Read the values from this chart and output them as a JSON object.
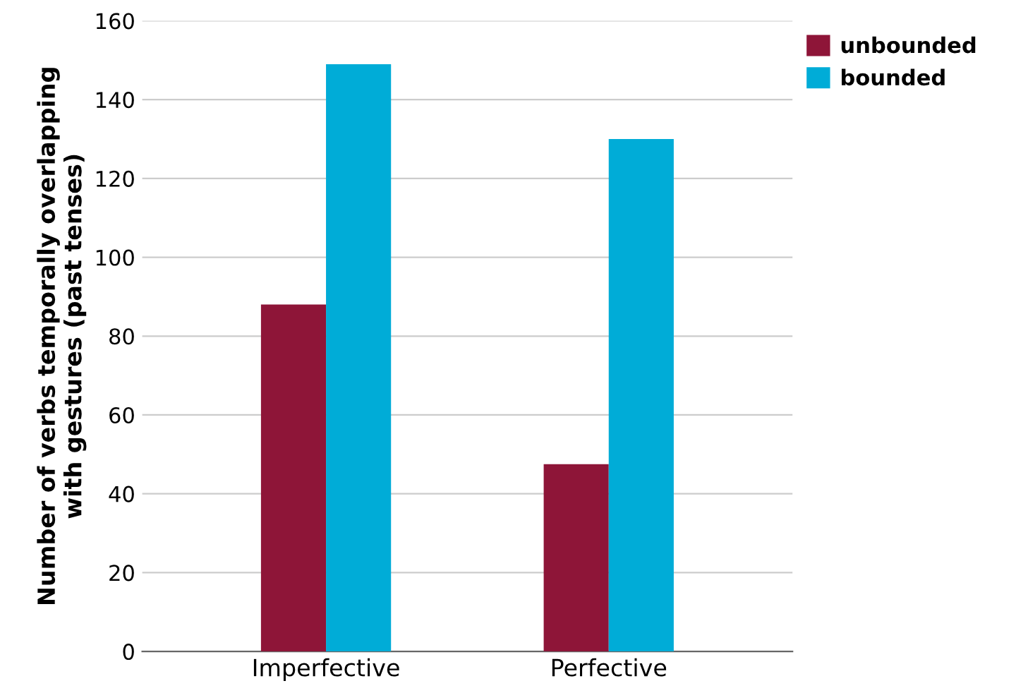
{
  "chart_data": {
    "type": "bar",
    "ylabel": "Number of verbs temporally overlapping\nwith gestures (past tenses)",
    "categories": [
      "Imperfective",
      "Perfective"
    ],
    "series": [
      {
        "name": "unbounded",
        "color": "#8e1538",
        "values": [
          88,
          47.5
        ]
      },
      {
        "name": "bounded",
        "color": "#00acd7",
        "values": [
          149,
          130
        ]
      }
    ],
    "ylim": [
      0,
      160
    ],
    "yticks": [
      0,
      20,
      40,
      60,
      80,
      100,
      120,
      140,
      160
    ],
    "grid": "y",
    "legend": "top right"
  }
}
